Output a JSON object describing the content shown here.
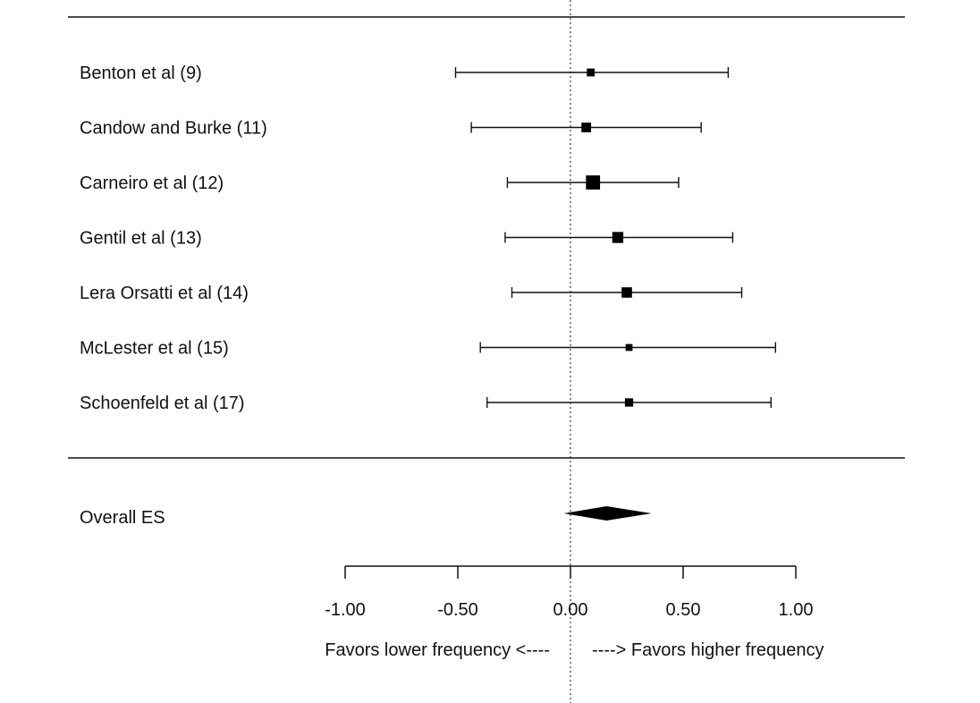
{
  "chart_data": {
    "type": "forest",
    "title": "",
    "xlabel": "",
    "ylabel": "",
    "xlim": [
      -1.0,
      1.0
    ],
    "ticks": [
      {
        "value": -1.0,
        "label": "-1.00"
      },
      {
        "value": -0.5,
        "label": "-0.50"
      },
      {
        "value": 0.0,
        "label": "0.00"
      },
      {
        "value": 0.5,
        "label": "0.50"
      },
      {
        "value": 1.0,
        "label": "1.00"
      }
    ],
    "null_line": 0.0,
    "studies": [
      {
        "label": "Benton et al (9)",
        "es": 0.09,
        "lower": -0.51,
        "upper": 0.7,
        "weight": 1
      },
      {
        "label": "Candow and Burke (11)",
        "es": 0.07,
        "lower": -0.44,
        "upper": 0.58,
        "weight": 2
      },
      {
        "label": "Carneiro et al (12)",
        "es": 0.1,
        "lower": -0.28,
        "upper": 0.48,
        "weight": 6
      },
      {
        "label": "Gentil et al (13)",
        "es": 0.21,
        "lower": -0.29,
        "upper": 0.72,
        "weight": 3
      },
      {
        "label": "Lera Orsatti et al (14)",
        "es": 0.25,
        "lower": -0.26,
        "upper": 0.76,
        "weight": 2.5
      },
      {
        "label": "McLester et al (15)",
        "es": 0.26,
        "lower": -0.4,
        "upper": 0.91,
        "weight": 0.6
      },
      {
        "label": "Schoenfeld et al (17)",
        "es": 0.26,
        "lower": -0.37,
        "upper": 0.89,
        "weight": 1.2
      }
    ],
    "overall": {
      "label": "Overall ES",
      "es": 0.16,
      "lower": -0.03,
      "upper": 0.36
    },
    "favors_left": "Favors lower frequency <----",
    "favors_right": "----> Favors higher frequency",
    "grid": false
  }
}
